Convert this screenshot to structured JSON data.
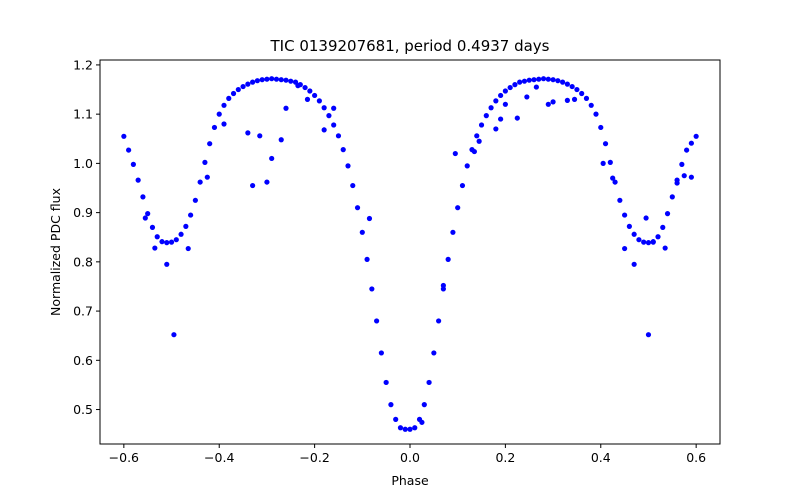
{
  "chart_data": {
    "type": "scatter",
    "title": "TIC 0139207681, period 0.4937 days",
    "xlabel": "Phase",
    "ylabel": "Normalized PDC flux",
    "xlim": [
      -0.65,
      0.65
    ],
    "ylim": [
      0.43,
      1.21
    ],
    "xticks": [
      -0.6,
      -0.4,
      -0.2,
      0.0,
      0.2,
      0.4,
      0.6
    ],
    "xtick_labels": [
      "−0.6",
      "−0.4",
      "−0.2",
      "0.0",
      "0.2",
      "0.4",
      "0.6"
    ],
    "yticks": [
      0.5,
      0.6,
      0.7,
      0.8,
      0.9,
      1.0,
      1.1,
      1.2
    ],
    "ytick_labels": [
      "0.5",
      "0.6",
      "0.7",
      "0.8",
      "0.9",
      "1.0",
      "1.1",
      "1.2"
    ],
    "grid": false,
    "marker_color": "#0000ff",
    "series": [
      {
        "x": [
          -0.6,
          -0.59,
          -0.58,
          -0.57,
          -0.56,
          -0.55,
          -0.54,
          -0.53,
          -0.52,
          -0.51,
          -0.5,
          -0.49,
          -0.48,
          -0.47,
          -0.46,
          -0.45,
          -0.44,
          -0.43,
          -0.42,
          -0.41,
          -0.4,
          -0.39,
          -0.38,
          -0.37,
          -0.36,
          -0.35,
          -0.34,
          -0.33,
          -0.32,
          -0.31,
          -0.3,
          -0.29,
          -0.28,
          -0.27,
          -0.26,
          -0.25,
          -0.24,
          -0.23,
          -0.22,
          -0.21,
          -0.2,
          -0.19,
          -0.18,
          -0.17,
          -0.16,
          -0.15,
          -0.14,
          -0.13,
          -0.12,
          -0.11,
          -0.1,
          -0.09,
          -0.08,
          -0.07,
          -0.06,
          -0.05,
          -0.04,
          -0.03,
          -0.02,
          -0.01,
          0.0,
          0.01,
          0.02,
          0.03,
          0.04,
          0.05,
          0.06,
          0.07,
          0.08,
          0.09,
          0.1,
          0.11,
          0.12,
          0.13,
          0.14,
          0.15,
          0.16,
          0.17,
          0.18,
          0.19,
          0.2,
          0.21,
          0.22,
          0.23,
          0.24,
          0.25,
          0.26,
          0.27,
          0.28,
          0.29,
          0.3,
          0.31,
          0.32,
          0.33,
          0.34,
          0.35,
          0.36,
          0.37,
          0.38,
          0.39,
          0.4,
          0.41,
          0.42,
          0.43,
          0.44,
          0.45,
          0.46,
          0.47,
          0.48,
          0.49,
          0.5,
          0.51,
          0.52,
          0.53,
          0.54,
          0.55,
          0.56,
          0.57,
          0.58,
          0.59,
          0.6,
          -0.555,
          -0.535,
          -0.51,
          -0.495,
          -0.465,
          -0.425,
          -0.39,
          -0.34,
          -0.33,
          -0.315,
          -0.3,
          -0.29,
          -0.27,
          -0.26,
          -0.235,
          -0.215,
          -0.18,
          -0.16,
          -0.085,
          0.025,
          0.07,
          0.095,
          0.135,
          0.145,
          0.18,
          0.19,
          0.2,
          0.225,
          0.245,
          0.265,
          0.29,
          0.3,
          0.33,
          0.345,
          0.405,
          0.425,
          0.45,
          0.47,
          0.5,
          0.495,
          0.51,
          0.535,
          0.56,
          0.575,
          0.59
        ],
        "y": [
          1.055,
          1.027,
          0.998,
          0.966,
          0.932,
          0.898,
          0.87,
          0.851,
          0.841,
          0.839,
          0.84,
          0.845,
          0.856,
          0.872,
          0.895,
          0.925,
          0.962,
          1.002,
          1.04,
          1.073,
          1.1,
          1.118,
          1.132,
          1.142,
          1.15,
          1.156,
          1.161,
          1.165,
          1.168,
          1.17,
          1.171,
          1.172,
          1.171,
          1.17,
          1.169,
          1.167,
          1.165,
          1.16,
          1.154,
          1.147,
          1.138,
          1.127,
          1.113,
          1.097,
          1.078,
          1.056,
          1.028,
          0.995,
          0.955,
          0.91,
          0.86,
          0.805,
          0.745,
          0.68,
          0.615,
          0.555,
          0.51,
          0.48,
          0.463,
          0.46,
          0.46,
          0.463,
          0.48,
          0.51,
          0.555,
          0.615,
          0.68,
          0.745,
          0.805,
          0.86,
          0.91,
          0.955,
          0.995,
          1.028,
          1.056,
          1.078,
          1.097,
          1.113,
          1.127,
          1.138,
          1.147,
          1.154,
          1.16,
          1.165,
          1.167,
          1.169,
          1.17,
          1.171,
          1.172,
          1.171,
          1.17,
          1.168,
          1.165,
          1.161,
          1.156,
          1.15,
          1.142,
          1.132,
          1.118,
          1.1,
          1.073,
          1.04,
          1.002,
          0.962,
          0.925,
          0.895,
          0.872,
          0.856,
          0.845,
          0.84,
          0.839,
          0.841,
          0.851,
          0.87,
          0.898,
          0.932,
          0.966,
          0.998,
          1.027,
          1.041,
          1.055,
          0.889,
          0.828,
          0.795,
          0.652,
          0.827,
          0.972,
          1.08,
          1.062,
          0.955,
          1.056,
          0.962,
          1.01,
          1.048,
          1.112,
          1.158,
          1.13,
          1.068,
          1.112,
          0.888,
          0.474,
          0.752,
          1.02,
          1.024,
          1.045,
          1.07,
          1.09,
          1.12,
          1.092,
          1.135,
          1.155,
          1.12,
          1.125,
          1.128,
          1.13,
          1.0,
          0.97,
          0.827,
          0.795,
          0.652,
          0.889,
          0.84,
          0.828,
          0.96,
          0.975,
          0.972
        ]
      }
    ]
  }
}
